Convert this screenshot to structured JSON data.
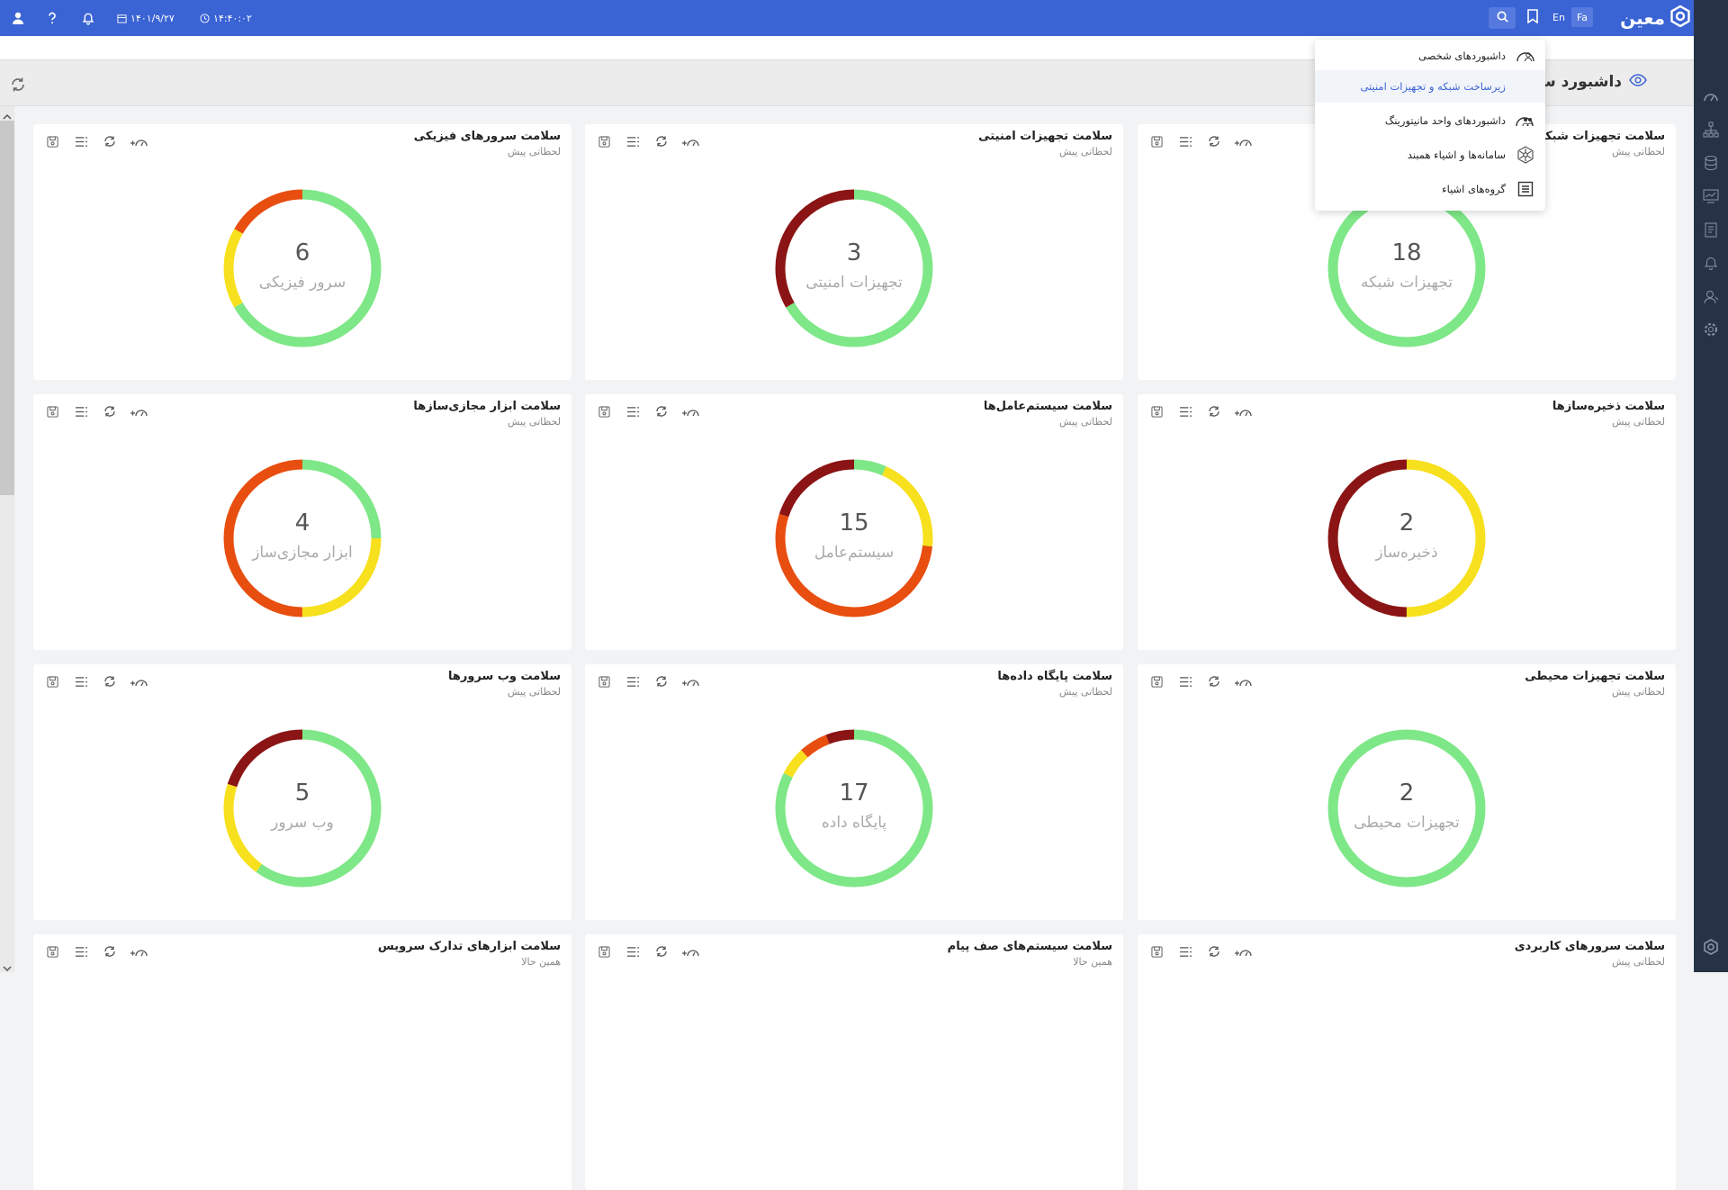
{
  "app": {
    "logo_text": "معین"
  },
  "topbar": {
    "date": "۱۴۰۱/۹/۲۷",
    "time": "۱۴:۴۰:۰۲",
    "lang_en": "En",
    "lang_fa": "Fa"
  },
  "page": {
    "title": "داشبورد سلامت"
  },
  "menu": {
    "items": [
      {
        "label": "داشبوردهای شخصی",
        "icon": "users-dashboard-icon"
      },
      {
        "label": "زیرساخت شبکه و تجهیزات امنیتی",
        "icon": ""
      },
      {
        "label": "داشبوردهای واحد مانیتورینگ",
        "icon": "team-dashboard-icon"
      },
      {
        "label": "سامانه‌ها و اشیاء همبند",
        "icon": "network-hex-icon"
      },
      {
        "label": "گروه‌های اشیاء",
        "icon": "list-box-icon"
      }
    ]
  },
  "colors": {
    "green": "#7ee787",
    "yellow": "#f7e01d",
    "orange": "#e84e10",
    "darkred": "#8b1414",
    "topbar": "#3a63d4",
    "sidebar": "#263346"
  },
  "cards": [
    {
      "title": "سلامت تجهیزات شبکه",
      "sub": "لحظاتی پیش",
      "num": "18",
      "label": "تجهیزات شبکه",
      "segments": [
        [
          "green",
          1
        ]
      ]
    },
    {
      "title": "سلامت تجهیزات امنیتی",
      "sub": "لحظاتی پیش",
      "num": "3",
      "label": "تجهیزات امنیتی",
      "segments": [
        [
          "green",
          0.6667
        ],
        [
          "darkred",
          0.3333
        ]
      ]
    },
    {
      "title": "سلامت سرورهای فیزیکی",
      "sub": "لحظاتی پیش",
      "num": "6",
      "label": "سرور فیزیکی",
      "segments": [
        [
          "green",
          0.6667
        ],
        [
          "yellow",
          0.1667
        ],
        [
          "orange",
          0.1666
        ]
      ]
    },
    {
      "title": "سلامت ذخیره‌سازها",
      "sub": "لحظاتی پیش",
      "num": "2",
      "label": "ذخیره‌ساز",
      "segments": [
        [
          "yellow",
          0.5
        ],
        [
          "darkred",
          0.5
        ]
      ]
    },
    {
      "title": "سلامت سیستم‌عامل‌ها",
      "sub": "لحظاتی پیش",
      "num": "15",
      "label": "سیستم‌عامل",
      "segments": [
        [
          "green",
          0.0667
        ],
        [
          "yellow",
          0.2
        ],
        [
          "orange",
          0.5333
        ],
        [
          "darkred",
          0.2
        ]
      ]
    },
    {
      "title": "سلامت ابزار مجازی‌سازها",
      "sub": "لحظاتی پیش",
      "num": "4",
      "label": "ابزار مجازی‌ساز",
      "segments": [
        [
          "green",
          0.25
        ],
        [
          "yellow",
          0.25
        ],
        [
          "orange",
          0.5
        ]
      ]
    },
    {
      "title": "سلامت تجهیزات محیطی",
      "sub": "لحظاتی پیش",
      "num": "2",
      "label": "تجهیزات محیطی",
      "segments": [
        [
          "green",
          1
        ]
      ]
    },
    {
      "title": "سلامت پایگاه داده‌ها",
      "sub": "لحظاتی پیش",
      "num": "17",
      "label": "پایگاه داده",
      "segments": [
        [
          "green",
          0.8236
        ],
        [
          "yellow",
          0.0588
        ],
        [
          "orange",
          0.0588
        ],
        [
          "darkred",
          0.0588
        ]
      ]
    },
    {
      "title": "سلامت وب سرورها",
      "sub": "لحظاتی پیش",
      "num": "5",
      "label": "وب سرور",
      "segments": [
        [
          "green",
          0.6
        ],
        [
          "yellow",
          0.2
        ],
        [
          "darkred",
          0.2
        ]
      ]
    },
    {
      "title": "سلامت سرورهای کاربردی",
      "sub": "لحظاتی پیش",
      "num": "",
      "label": "",
      "segments": []
    },
    {
      "title": "سلامت سیستم‌های صف پیام",
      "sub": "همین حالا",
      "num": "",
      "label": "",
      "segments": []
    },
    {
      "title": "سلامت ابزارهای تدارک سرویس",
      "sub": "همین حالا",
      "num": "",
      "label": "",
      "segments": []
    }
  ]
}
